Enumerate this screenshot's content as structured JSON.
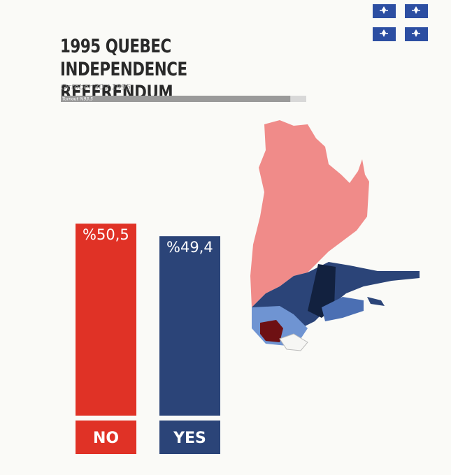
{
  "chart_data": {
    "type": "bar",
    "title": "1995 QUEBEC INDEPENDENCE REFERENDUM",
    "subtitle": "October 30 / 1995",
    "turnout": {
      "value": 93.5,
      "label": "Turnout %93,5"
    },
    "categories": [
      "NO",
      "YES"
    ],
    "values": [
      50.5,
      49.4
    ],
    "value_labels": [
      "%50,5",
      "%49,4"
    ],
    "colors": [
      "#e03226",
      "#2b4478"
    ]
  }
}
